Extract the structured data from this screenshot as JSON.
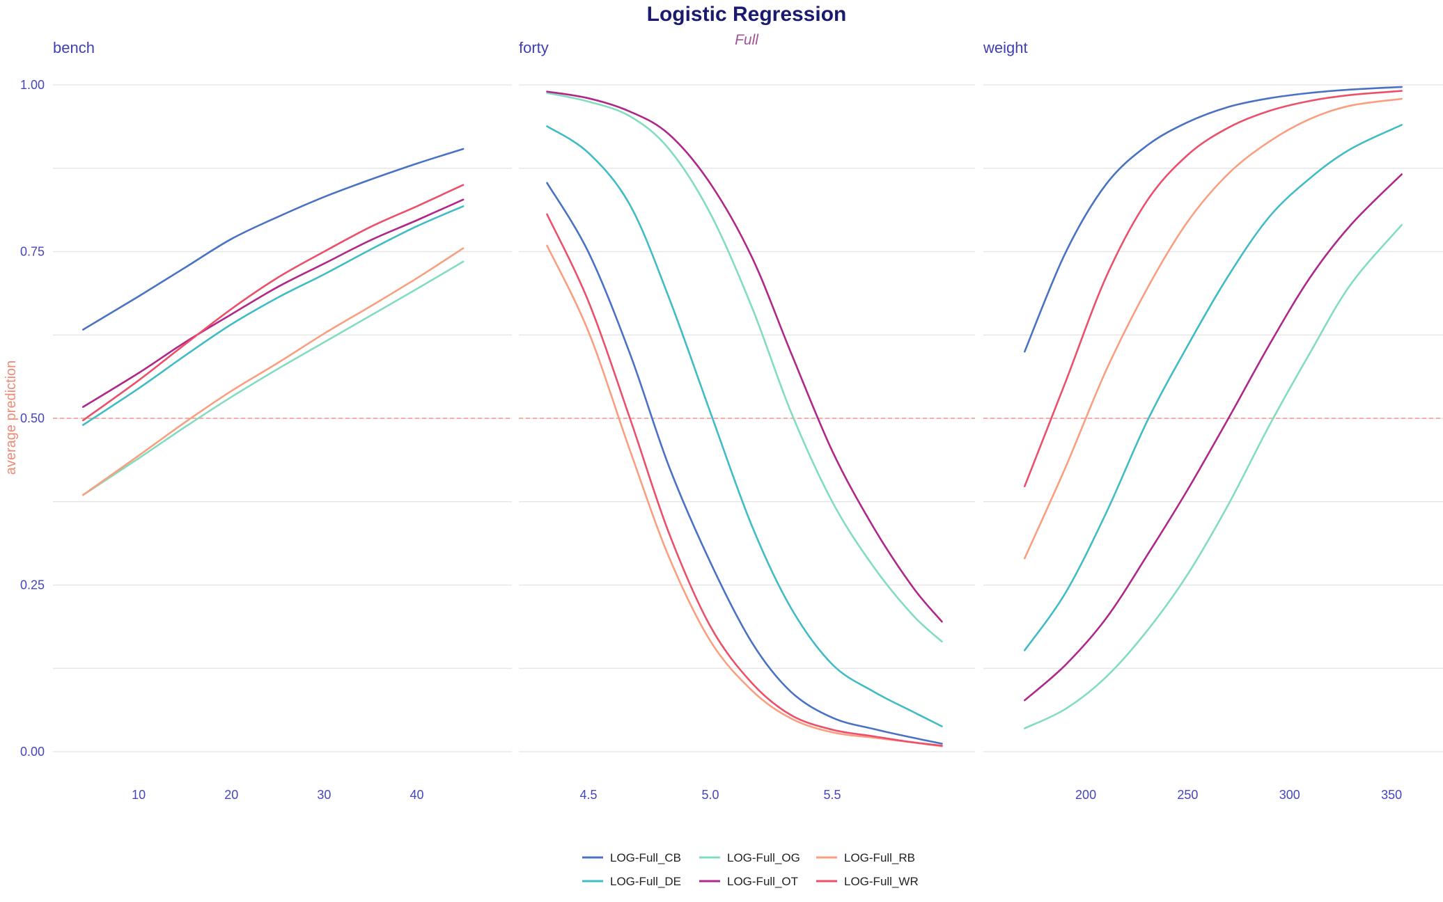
{
  "chart_data": {
    "type": "line",
    "title": "Logistic Regression",
    "subtitle": "Full",
    "ylabel": "average prediction",
    "ylim": [
      0,
      1
    ],
    "y_ticks": [
      "0.00",
      "0.25",
      "0.50",
      "0.75",
      "1.00"
    ],
    "reference_line": 0.5,
    "grid": true,
    "legend_position": "bottom",
    "series_colors": {
      "LOG-Full_CB": "#4a72c4",
      "LOG-Full_DE": "#3fbcc4",
      "LOG-Full_OG": "#82dcc0",
      "LOG-Full_OT": "#b0278a",
      "LOG-Full_RB": "#fa9e80",
      "LOG-Full_WR": "#ec4f6a"
    },
    "legend": [
      [
        "LOG-Full_CB",
        "LOG-Full_OG",
        "LOG-Full_RB"
      ],
      [
        "LOG-Full_DE",
        "LOG-Full_OT",
        "LOG-Full_WR"
      ]
    ],
    "panels": [
      {
        "name": "bench",
        "xlim": [
          3,
          48
        ],
        "x_ticks": [
          "10",
          "20",
          "30",
          "40"
        ],
        "x": [
          4,
          10,
          15,
          20,
          25,
          30,
          35,
          40,
          45
        ],
        "series": [
          {
            "name": "LOG-Full_CB",
            "values": [
              0.633,
              0.683,
              0.726,
              0.769,
              0.802,
              0.832,
              0.858,
              0.882,
              0.904
            ]
          },
          {
            "name": "LOG-Full_DE",
            "values": [
              0.49,
              0.545,
              0.594,
              0.641,
              0.681,
              0.716,
              0.753,
              0.788,
              0.818
            ]
          },
          {
            "name": "LOG-Full_OG",
            "values": [
              0.385,
              0.44,
              0.487,
              0.532,
              0.574,
              0.614,
              0.654,
              0.694,
              0.735
            ]
          },
          {
            "name": "LOG-Full_OT",
            "values": [
              0.517,
              0.568,
              0.614,
              0.656,
              0.697,
              0.732,
              0.767,
              0.797,
              0.828
            ]
          },
          {
            "name": "LOG-Full_RB",
            "values": [
              0.385,
              0.444,
              0.494,
              0.541,
              0.583,
              0.627,
              0.668,
              0.71,
              0.755
            ]
          },
          {
            "name": "LOG-Full_WR",
            "values": [
              0.497,
              0.557,
              0.611,
              0.664,
              0.711,
              0.75,
              0.787,
              0.818,
              0.85
            ]
          }
        ]
      },
      {
        "name": "forty",
        "xlim": [
          4.3,
          6.0
        ],
        "x_ticks": [
          "4.5",
          "5.0",
          "5.5"
        ],
        "x": [
          4.33,
          4.5,
          4.67,
          4.83,
          5.0,
          5.17,
          5.33,
          5.5,
          5.67,
          5.83,
          5.95
        ],
        "series": [
          {
            "name": "LOG-Full_CB",
            "values": [
              0.853,
              0.749,
              0.597,
              0.428,
              0.284,
              0.164,
              0.09,
              0.051,
              0.034,
              0.021,
              0.012
            ]
          },
          {
            "name": "LOG-Full_DE",
            "values": [
              0.938,
              0.898,
              0.82,
              0.681,
              0.509,
              0.339,
              0.216,
              0.131,
              0.09,
              0.06,
              0.038
            ]
          },
          {
            "name": "LOG-Full_OG",
            "values": [
              0.988,
              0.975,
              0.953,
              0.904,
              0.807,
              0.667,
              0.51,
              0.375,
              0.277,
              0.205,
              0.165
            ]
          },
          {
            "name": "LOG-Full_OT",
            "values": [
              0.99,
              0.98,
              0.96,
              0.926,
              0.852,
              0.742,
              0.599,
              0.451,
              0.336,
              0.247,
              0.195
            ]
          },
          {
            "name": "LOG-Full_RB",
            "values": [
              0.759,
              0.63,
              0.452,
              0.292,
              0.166,
              0.092,
              0.05,
              0.029,
              0.021,
              0.014,
              0.008
            ]
          },
          {
            "name": "LOG-Full_WR",
            "values": [
              0.806,
              0.675,
              0.5,
              0.328,
              0.188,
              0.103,
              0.055,
              0.033,
              0.023,
              0.014,
              0.009
            ]
          }
        ]
      },
      {
        "name": "weight",
        "xlim": [
          160,
          365
        ],
        "x_ticks": [
          "200",
          "250",
          "300",
          "350"
        ],
        "x": [
          170,
          190,
          210,
          230,
          250,
          270,
          290,
          310,
          330,
          355
        ],
        "series": [
          {
            "name": "LOG-Full_CB",
            "values": [
              0.6,
              0.748,
              0.851,
              0.909,
              0.944,
              0.967,
              0.98,
              0.988,
              0.993,
              0.997
            ]
          },
          {
            "name": "LOG-Full_DE",
            "values": [
              0.152,
              0.238,
              0.358,
              0.495,
              0.609,
              0.714,
              0.802,
              0.86,
              0.904,
              0.94
            ]
          },
          {
            "name": "LOG-Full_OG",
            "values": [
              0.035,
              0.064,
              0.112,
              0.181,
              0.266,
              0.371,
              0.489,
              0.598,
              0.701,
              0.79
            ]
          },
          {
            "name": "LOG-Full_OT",
            "values": [
              0.077,
              0.13,
              0.2,
              0.294,
              0.393,
              0.5,
              0.61,
              0.711,
              0.79,
              0.866
            ]
          },
          {
            "name": "LOG-Full_RB",
            "values": [
              0.29,
              0.426,
              0.572,
              0.694,
              0.795,
              0.867,
              0.915,
              0.949,
              0.969,
              0.979
            ]
          },
          {
            "name": "LOG-Full_WR",
            "values": [
              0.398,
              0.554,
              0.712,
              0.826,
              0.895,
              0.936,
              0.961,
              0.976,
              0.985,
              0.991
            ]
          }
        ]
      }
    ]
  }
}
